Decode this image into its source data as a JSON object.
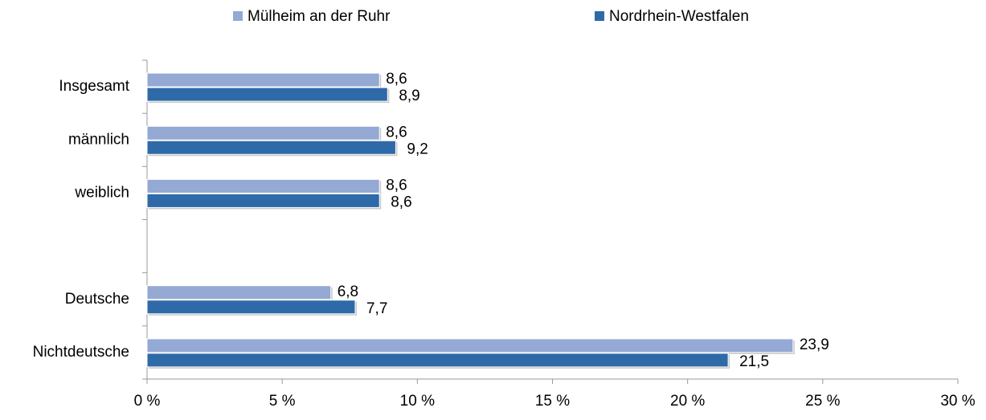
{
  "chart_data": {
    "type": "hbar",
    "categories": [
      "Insgesamt",
      "männlich",
      "weiblich",
      null,
      "Deutsche",
      "Nichtdeutsche"
    ],
    "series": [
      {
        "name": "Mülheim an der Ruhr",
        "color": "#94a9d4",
        "values": [
          8.6,
          8.6,
          8.6,
          null,
          6.8,
          23.9
        ],
        "value_labels": [
          "8,6",
          "8,6",
          "8,6",
          null,
          "6,8",
          "23,9"
        ]
      },
      {
        "name": "Nordrhein-Westfalen",
        "color": "#2f6aa8",
        "values": [
          8.9,
          9.2,
          8.6,
          null,
          7.7,
          21.5
        ],
        "value_labels": [
          "8,9",
          "9,2",
          "8,6",
          null,
          "7,7",
          "21,5"
        ]
      }
    ],
    "xlim": [
      0,
      30
    ],
    "xticks": [
      {
        "value": 0,
        "label": "0 %"
      },
      {
        "value": 5,
        "label": "5 %"
      },
      {
        "value": 10,
        "label": "10 %"
      },
      {
        "value": 15,
        "label": "15 %"
      },
      {
        "value": 20,
        "label": "20 %"
      },
      {
        "value": 25,
        "label": "25 %"
      },
      {
        "value": 30,
        "label": "30 %"
      }
    ],
    "legend": "top"
  }
}
